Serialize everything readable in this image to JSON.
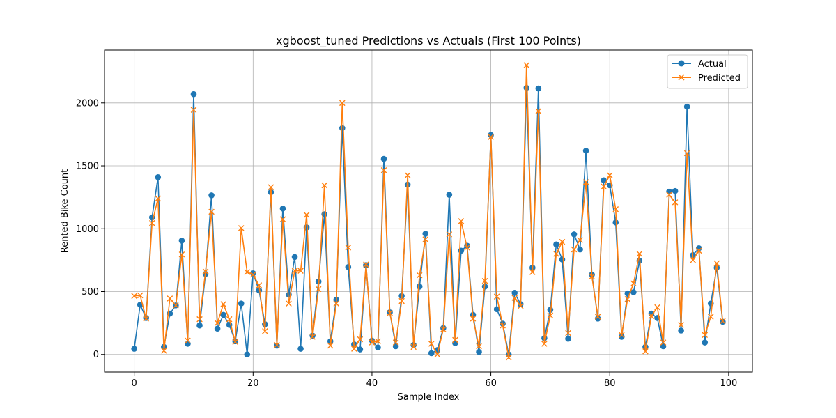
{
  "chart_data": {
    "type": "line",
    "title": "xgboost_tuned Predictions vs Actuals (First 100 Points)",
    "xlabel": "Sample Index",
    "ylabel": "Rented Bike Count",
    "xlim": [
      -5,
      104
    ],
    "ylim": [
      -140,
      2420
    ],
    "xticks": [
      0,
      20,
      40,
      60,
      80,
      100
    ],
    "yticks": [
      0,
      500,
      1000,
      1500,
      2000
    ],
    "grid": true,
    "legend_position": "upper-right",
    "x": [
      0,
      1,
      2,
      3,
      4,
      5,
      6,
      7,
      8,
      9,
      10,
      11,
      12,
      13,
      14,
      15,
      16,
      17,
      18,
      19,
      20,
      21,
      22,
      23,
      24,
      25,
      26,
      27,
      28,
      29,
      30,
      31,
      32,
      33,
      34,
      35,
      36,
      37,
      38,
      39,
      40,
      41,
      42,
      43,
      44,
      45,
      46,
      47,
      48,
      49,
      50,
      51,
      52,
      53,
      54,
      55,
      56,
      57,
      58,
      59,
      60,
      61,
      62,
      63,
      64,
      65,
      66,
      67,
      68,
      69,
      70,
      71,
      72,
      73,
      74,
      75,
      76,
      77,
      78,
      79,
      80,
      81,
      82,
      83,
      84,
      85,
      86,
      87,
      88,
      89,
      90,
      91,
      92,
      93,
      94,
      95,
      96,
      97,
      98,
      99
    ],
    "series": [
      {
        "name": "Actual",
        "color": "#1f77b4",
        "marker": "circle",
        "values": [
          45,
          395,
          290,
          1090,
          1410,
          60,
          325,
          390,
          905,
          85,
          2070,
          230,
          640,
          1265,
          205,
          315,
          235,
          105,
          405,
          0,
          645,
          510,
          240,
          1290,
          70,
          1160,
          475,
          775,
          45,
          1010,
          150,
          580,
          1115,
          105,
          435,
          1800,
          695,
          80,
          40,
          710,
          110,
          55,
          1555,
          335,
          65,
          465,
          1350,
          75,
          540,
          960,
          10,
          35,
          210,
          1270,
          90,
          825,
          865,
          315,
          20,
          540,
          1745,
          360,
          245,
          0,
          490,
          400,
          2120,
          690,
          2115,
          130,
          355,
          875,
          755,
          125,
          955,
          835,
          1620,
          635,
          285,
          1385,
          1345,
          1050,
          140,
          485,
          495,
          745,
          60,
          325,
          290,
          65,
          1295,
          1300,
          190,
          1970,
          790,
          845,
          95,
          405,
          690,
          260
        ]
      },
      {
        "name": "Predicted",
        "color": "#ff7f0e",
        "marker": "x",
        "values": [
          465,
          470,
          285,
          1045,
          1240,
          30,
          445,
          390,
          795,
          110,
          1945,
          280,
          660,
          1135,
          250,
          400,
          280,
          100,
          1005,
          655,
          635,
          550,
          185,
          1330,
          75,
          1075,
          405,
          665,
          665,
          1110,
          140,
          520,
          1345,
          70,
          405,
          2000,
          850,
          45,
          120,
          715,
          95,
          105,
          1465,
          330,
          95,
          425,
          1425,
          60,
          630,
          915,
          85,
          0,
          200,
          955,
          115,
          1060,
          850,
          285,
          65,
          585,
          1730,
          460,
          230,
          -25,
          450,
          385,
          2300,
          655,
          1935,
          85,
          310,
          800,
          895,
          170,
          835,
          910,
          1370,
          620,
          300,
          1335,
          1425,
          1155,
          155,
          440,
          565,
          800,
          25,
          305,
          375,
          95,
          1270,
          1210,
          235,
          1600,
          750,
          825,
          155,
          300,
          725,
          265
        ]
      }
    ]
  }
}
